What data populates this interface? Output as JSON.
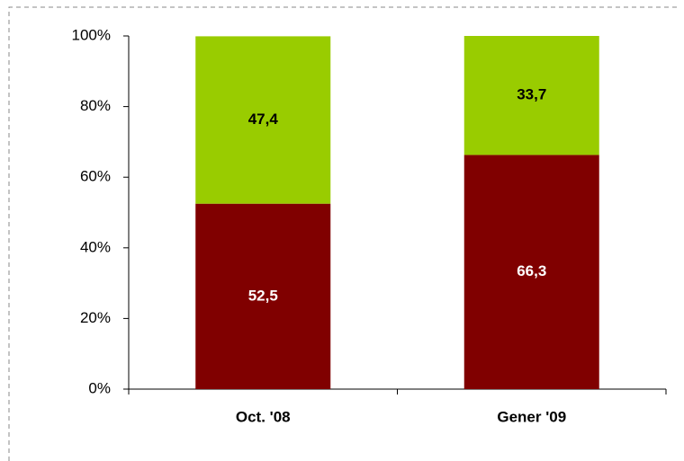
{
  "chart_data": {
    "type": "stacked_bar",
    "categories": [
      "Oct. '08",
      "Gener '09"
    ],
    "series": [
      {
        "color": "#800000",
        "values": [
          52.5,
          66.3
        ],
        "value_labels": [
          "52,5",
          "66,3"
        ],
        "label_color": "#ffffff"
      },
      {
        "color": "#99cc00",
        "values": [
          47.4,
          33.7
        ],
        "value_labels": [
          "47,4",
          "33,7"
        ],
        "label_color": "#000000"
      }
    ],
    "ylim": [
      0,
      100
    ],
    "yticks": [
      {
        "value": 0,
        "label": "0%"
      },
      {
        "value": 20,
        "label": "20%"
      },
      {
        "value": 40,
        "label": "40%"
      },
      {
        "value": 60,
        "label": "60%"
      },
      {
        "value": 80,
        "label": "80%"
      },
      {
        "value": 100,
        "label": "100%"
      }
    ],
    "grid": false
  }
}
